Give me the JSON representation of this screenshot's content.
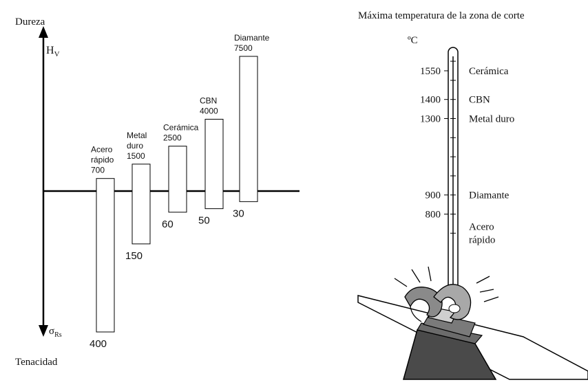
{
  "chart_data": [
    {
      "type": "bar",
      "top_axis_label": "Dureza",
      "top_axis_symbol": "H",
      "top_axis_subscript": "V",
      "bottom_axis_label": "Tenacidad",
      "bottom_axis_symbol": "σ",
      "bottom_axis_subscript": "Rs",
      "series": [
        {
          "name": "Hardness HV",
          "values": [
            700,
            1500,
            2500,
            4000,
            7500
          ]
        },
        {
          "name": "Toughness σRs",
          "values": [
            400,
            150,
            60,
            50,
            30
          ]
        }
      ],
      "bars": [
        {
          "label_lines": [
            "Acero",
            "rápido",
            "700"
          ],
          "hardness": 700,
          "toughness": 400,
          "hardness_label": "700",
          "toughness_label": "400"
        },
        {
          "label_lines": [
            "Metal",
            "duro",
            "1500"
          ],
          "hardness": 1500,
          "toughness": 150,
          "hardness_label": "1500",
          "toughness_label": "150"
        },
        {
          "label_lines": [
            "Cerámica",
            "2500"
          ],
          "hardness": 2500,
          "toughness": 60,
          "hardness_label": "2500",
          "toughness_label": "60"
        },
        {
          "label_lines": [
            "CBN",
            "4000"
          ],
          "hardness": 4000,
          "toughness": 50,
          "hardness_label": "4000",
          "toughness_label": "50"
        },
        {
          "label_lines": [
            "Diamante",
            "7500"
          ],
          "hardness": 7500,
          "toughness": 30,
          "hardness_label": "7500",
          "toughness_label": "30"
        }
      ]
    },
    {
      "type": "thermometer",
      "title": "Máxima temperatura de la zona de corte",
      "unit": "ºC",
      "scale_range": [
        700,
        1700
      ],
      "markers": [
        {
          "temp": 1550,
          "temp_label": "1550",
          "material": "Cerámica"
        },
        {
          "temp": 1400,
          "temp_label": "1400",
          "material": "CBN"
        },
        {
          "temp": 1300,
          "temp_label": "1300",
          "material": "Metal duro"
        },
        {
          "temp": 900,
          "temp_label": "900",
          "material": "Diamante"
        },
        {
          "temp": 800,
          "temp_label": "800",
          "material": "Acero\nrápido"
        }
      ]
    }
  ]
}
